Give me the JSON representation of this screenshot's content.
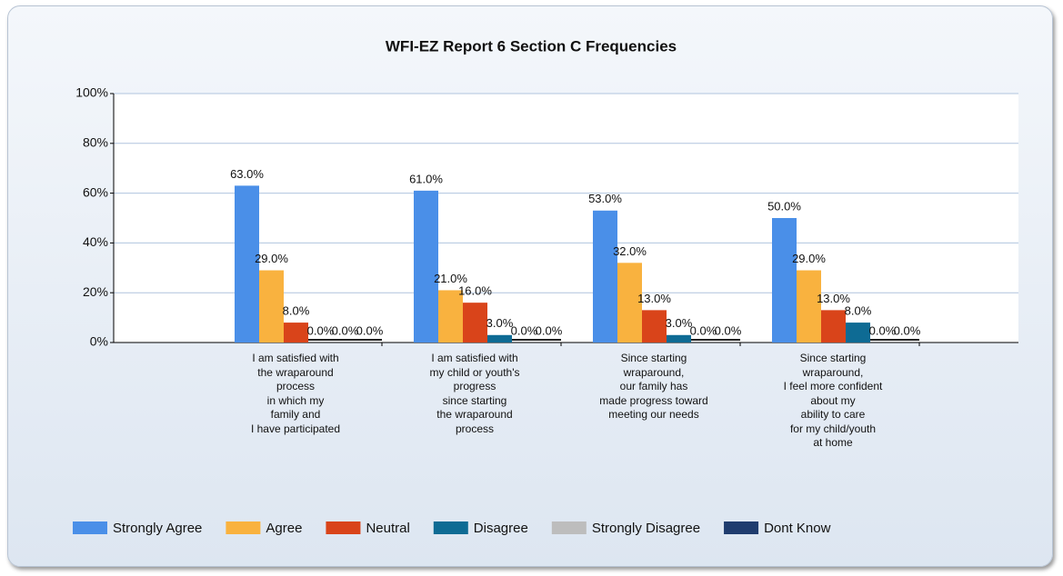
{
  "chart_data": {
    "type": "bar",
    "title": "WFI-EZ Report 6  Section C Frequencies",
    "categories": [
      "I am satisfied with\nthe wraparound\nprocess\nin which my\nfamily and\nI have participated",
      "I am satisfied with\nmy child or youth's\nprogress\nsince starting\nthe wraparound\nprocess",
      "Since starting\nwraparound,\nour family has\nmade progress toward\nmeeting our needs",
      "Since starting\nwraparound,\nI feel more confident\nabout my\nability to care\nfor my child/youth\nat home"
    ],
    "series": [
      {
        "name": "Strongly Agree",
        "color": "#4a8fe8",
        "values": [
          63,
          61,
          53,
          50
        ],
        "value_labels": [
          "63.0%",
          "61.0%",
          "53.0%",
          "50.0%"
        ]
      },
      {
        "name": "Agree",
        "color": "#f9b23f",
        "values": [
          29,
          21,
          32,
          29
        ],
        "value_labels": [
          "29.0%",
          "21.0%",
          "32.0%",
          "29.0%"
        ]
      },
      {
        "name": "Neutral",
        "color": "#d9441a",
        "values": [
          8,
          16,
          13,
          13
        ],
        "value_labels": [
          "8.0%",
          "16.0%",
          "13.0%",
          "13.0%"
        ]
      },
      {
        "name": "Disagree",
        "color": "#0e6b94",
        "values": [
          0,
          3,
          3,
          8
        ],
        "value_labels": [
          "0.0%",
          "3.0%",
          "3.0%",
          "8.0%"
        ]
      },
      {
        "name": "Strongly Disagree",
        "color": "#bdbdbd",
        "values": [
          0,
          0,
          0,
          0
        ],
        "value_labels": [
          "0.0%",
          "0.0%",
          "0.0%",
          "0.0%"
        ]
      },
      {
        "name": "Dont Know",
        "color": "#1f3c6e",
        "values": [
          0,
          0,
          0,
          0
        ],
        "value_labels": [
          "0.0%",
          "0.0%",
          "0.0%",
          "0.0%"
        ]
      }
    ],
    "ylim": [
      0,
      100
    ],
    "yticks": [
      {
        "value": 0,
        "label": "0%"
      },
      {
        "value": 20,
        "label": "20%"
      },
      {
        "value": 40,
        "label": "40%"
      },
      {
        "value": 60,
        "label": "60%"
      },
      {
        "value": 80,
        "label": "80%"
      },
      {
        "value": 100,
        "label": "100%"
      }
    ],
    "grid": true
  }
}
